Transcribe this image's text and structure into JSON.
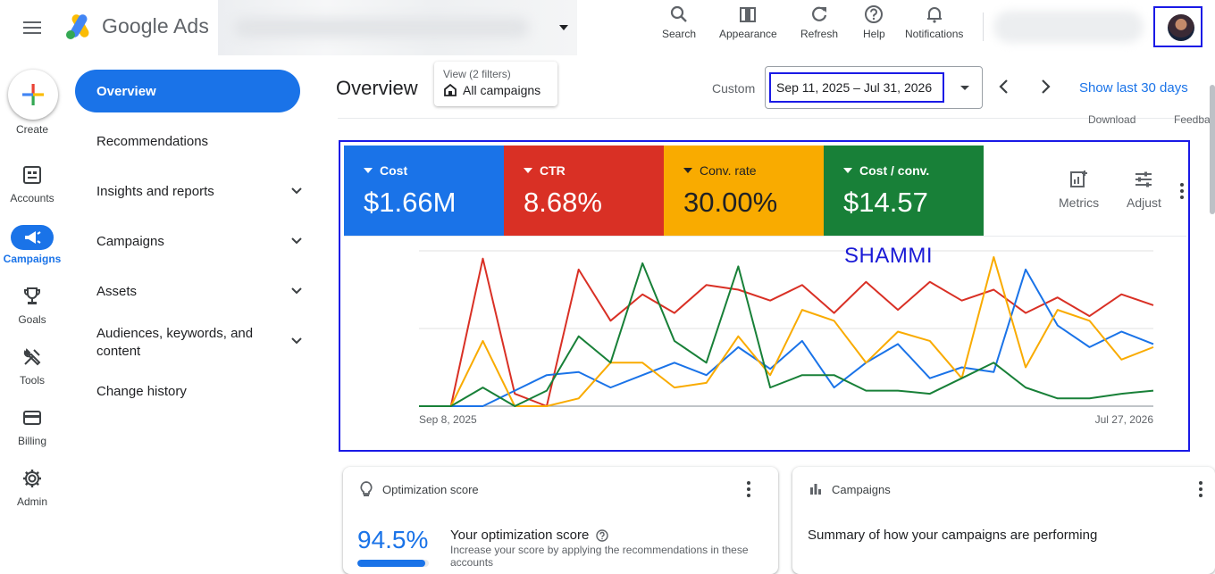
{
  "app": {
    "name": "Google Ads"
  },
  "toolbar": [
    {
      "key": "search",
      "label": "Search",
      "icon": "search-icon"
    },
    {
      "key": "appearance",
      "label": "Appearance",
      "icon": "appearance-icon"
    },
    {
      "key": "refresh",
      "label": "Refresh",
      "icon": "refresh-icon"
    },
    {
      "key": "help",
      "label": "Help",
      "icon": "help-icon"
    },
    {
      "key": "notifications",
      "label": "Notifications",
      "icon": "bell-icon"
    }
  ],
  "rail": {
    "create": "Create",
    "items": [
      {
        "label": "Accounts",
        "icon": "accounts-icon"
      },
      {
        "label": "Campaigns",
        "icon": "campaigns-icon",
        "active": true
      },
      {
        "label": "Goals",
        "icon": "trophy-icon"
      },
      {
        "label": "Tools",
        "icon": "tools-icon"
      },
      {
        "label": "Billing",
        "icon": "billing-icon"
      },
      {
        "label": "Admin",
        "icon": "gear-icon"
      }
    ]
  },
  "nav": {
    "overview": "Overview",
    "items": [
      {
        "label": "Recommendations",
        "expandable": false
      },
      {
        "label": "Insights and reports",
        "expandable": true
      },
      {
        "label": "Campaigns",
        "expandable": true
      },
      {
        "label": "Assets",
        "expandable": true
      },
      {
        "label": "Audiences, keywords, and content",
        "expandable": true
      },
      {
        "label": "Change history",
        "expandable": false
      }
    ]
  },
  "header": {
    "title": "Overview",
    "view_filter_small": "View (2 filters)",
    "view_filter_value": "All campaigns",
    "custom_label": "Custom",
    "date_range": "Sep 11, 2025 – Jul 31, 2026",
    "show_last": "Show last 30 days",
    "download_partial": "Download",
    "feedback_partial": "Feedba"
  },
  "summary": {
    "metrics": [
      {
        "label": "Cost",
        "value": "$1.66M",
        "color": "#1a73e8"
      },
      {
        "label": "CTR",
        "value": "8.68%",
        "color": "#d93025"
      },
      {
        "label": "Conv. rate",
        "value": "30.00%",
        "color": "#f9ab00"
      },
      {
        "label": "Cost / conv.",
        "value": "$14.57",
        "color": "#188038"
      }
    ],
    "tools": {
      "metrics": "Metrics",
      "adjust": "Adjust"
    },
    "watermark": "SHAMMI"
  },
  "chart_data": {
    "type": "line",
    "x_start_label": "Sep 8, 2025",
    "x_end_label": "Jul 27, 2026",
    "ylim": [
      0,
      100
    ],
    "grid": true,
    "x": [
      "2025-09-08",
      "2025-09-22",
      "2025-10-06",
      "2025-10-20",
      "2025-11-03",
      "2025-11-17",
      "2025-12-01",
      "2025-12-15",
      "2025-12-29",
      "2026-01-12",
      "2026-01-26",
      "2026-02-09",
      "2026-02-23",
      "2026-03-09",
      "2026-03-23",
      "2026-04-06",
      "2026-04-20",
      "2026-05-04",
      "2026-05-18",
      "2026-06-01",
      "2026-06-15",
      "2026-06-29",
      "2026-07-13",
      "2026-07-27"
    ],
    "series": [
      {
        "color": "#d93025",
        "values": [
          0,
          0,
          95,
          8,
          0,
          88,
          55,
          72,
          60,
          78,
          75,
          68,
          78,
          60,
          80,
          62,
          80,
          68,
          75,
          60,
          70,
          58,
          72,
          65
        ]
      },
      {
        "color": "#1a73e8",
        "values": [
          0,
          0,
          0,
          10,
          20,
          22,
          12,
          20,
          28,
          20,
          38,
          24,
          42,
          12,
          28,
          40,
          18,
          25,
          22,
          88,
          52,
          38,
          48,
          40
        ]
      },
      {
        "color": "#f9ab00",
        "values": [
          0,
          0,
          42,
          0,
          0,
          5,
          28,
          28,
          12,
          15,
          45,
          20,
          62,
          55,
          28,
          48,
          42,
          18,
          96,
          25,
          62,
          55,
          30,
          38
        ]
      },
      {
        "color": "#188038",
        "values": [
          0,
          0,
          12,
          0,
          10,
          45,
          28,
          92,
          42,
          28,
          90,
          12,
          20,
          20,
          10,
          10,
          8,
          18,
          28,
          12,
          5,
          5,
          8,
          10
        ]
      }
    ]
  },
  "cards": {
    "optimization": {
      "title": "Optimization score",
      "score": "94.5%",
      "score_value": 94.5,
      "heading": "Your optimization score",
      "desc": "Increase your score by applying the recommendations in these accounts"
    },
    "campaigns": {
      "title": "Campaigns",
      "summary": "Summary of how your campaigns are performing"
    }
  }
}
